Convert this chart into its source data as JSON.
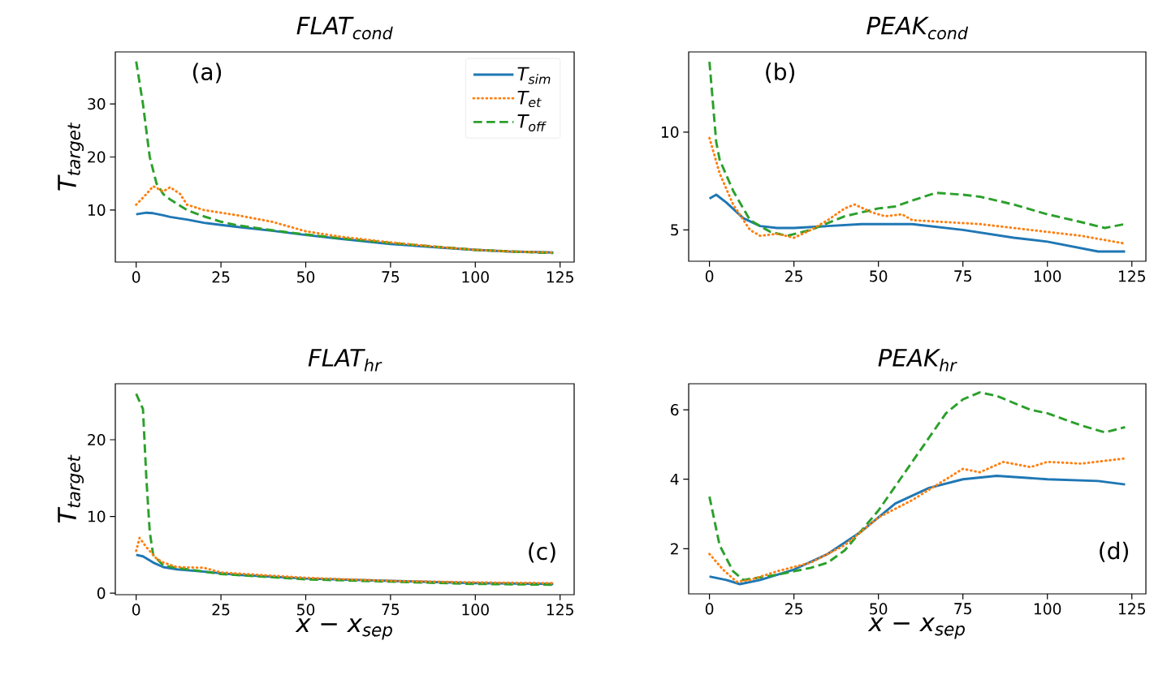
{
  "chart_data": [
    {
      "type": "line",
      "title": "FLAT$_{cond}$",
      "ylabel": "T$_{target}$",
      "annotations": [
        "(a)"
      ],
      "legend": "top right",
      "xlim": [
        -6.15,
        129.15
      ],
      "ylim": [
        0.2,
        39.8
      ],
      "xticks": [
        0,
        25,
        50,
        75,
        100,
        125
      ],
      "yticks": [
        10,
        20,
        30
      ],
      "series": [
        {
          "name": "T$_{sim}$",
          "color": "#1f77b4",
          "line_style": "solid",
          "x": [
            0,
            3,
            5,
            8,
            10,
            13,
            15,
            20,
            25,
            30,
            40,
            50,
            60,
            75,
            90,
            100,
            110,
            123
          ],
          "values": [
            9.2,
            9.5,
            9.4,
            9.0,
            8.7,
            8.4,
            8.2,
            7.6,
            7.2,
            6.8,
            6.1,
            5.3,
            4.6,
            3.6,
            2.9,
            2.5,
            2.2,
            2.0
          ]
        },
        {
          "name": "T$_{et}$",
          "color": "#ff7f0e",
          "line_style": "dotted",
          "x": [
            0,
            3,
            5,
            8,
            10,
            13,
            15,
            20,
            25,
            30,
            40,
            50,
            60,
            75,
            90,
            100,
            110,
            123
          ],
          "values": [
            11,
            13,
            14.5,
            13.5,
            14.3,
            13,
            11,
            10,
            9.5,
            9,
            7.8,
            6,
            5,
            3.9,
            3.0,
            2.5,
            2.2,
            2.0
          ]
        },
        {
          "name": "T$_{off}$",
          "color": "#2ca02c",
          "line_style": "dashed",
          "x": [
            0,
            2,
            4,
            6,
            8,
            10,
            13,
            15,
            20,
            25,
            30,
            40,
            50,
            60,
            75,
            90,
            100,
            110,
            123
          ],
          "values": [
            38,
            30,
            20,
            15,
            13,
            12,
            10.8,
            10,
            8.8,
            7.8,
            7.1,
            6.2,
            5.4,
            4.7,
            3.8,
            3.0,
            2.5,
            2.2,
            1.9
          ]
        }
      ]
    },
    {
      "type": "line",
      "title": "PEAK$_{cond}$",
      "annotations": [
        "(b)"
      ],
      "xlim": [
        -6.15,
        129.15
      ],
      "ylim": [
        3.4,
        14.1
      ],
      "xticks": [
        0,
        25,
        50,
        75,
        100,
        125
      ],
      "yticks": [
        5,
        10
      ],
      "series": [
        {
          "color": "#1f77b4",
          "line_style": "solid",
          "x": [
            0,
            2,
            5,
            10,
            15,
            20,
            25,
            35,
            45,
            60,
            75,
            90,
            100,
            115,
            123
          ],
          "values": [
            6.6,
            6.8,
            6.4,
            5.6,
            5.2,
            5.1,
            5.1,
            5.2,
            5.3,
            5.3,
            5.0,
            4.6,
            4.4,
            3.9,
            3.9
          ]
        },
        {
          "color": "#ff7f0e",
          "line_style": "dotted",
          "x": [
            0,
            3,
            7,
            12,
            15,
            20,
            25,
            30,
            35,
            40,
            43,
            48,
            52,
            57,
            60,
            70,
            80,
            90,
            100,
            110,
            123
          ],
          "values": [
            9.7,
            7.9,
            6.3,
            5.0,
            4.7,
            4.8,
            4.6,
            5.0,
            5.5,
            6.1,
            6.3,
            5.9,
            5.7,
            5.8,
            5.5,
            5.4,
            5.3,
            5.1,
            4.9,
            4.7,
            4.3
          ]
        },
        {
          "color": "#2ca02c",
          "line_style": "dashed",
          "x": [
            0,
            2,
            3,
            7,
            12,
            18,
            23,
            30,
            40,
            50,
            55,
            60,
            67,
            75,
            80,
            90,
            100,
            110,
            117,
            123
          ],
          "values": [
            13.6,
            9.5,
            8.6,
            7.0,
            5.5,
            4.9,
            4.7,
            5.0,
            5.7,
            6.1,
            6.2,
            6.5,
            6.9,
            6.8,
            6.7,
            6.3,
            5.8,
            5.4,
            5.1,
            5.3
          ]
        }
      ]
    },
    {
      "type": "line",
      "title": "FLAT$_{hr}$",
      "ylabel": "T$_{target}$",
      "xlabel": "x − x$_{sep}$",
      "annotations": [
        "(c)"
      ],
      "xlim": [
        -6.15,
        129.15
      ],
      "ylim": [
        -0.2,
        27.3
      ],
      "xticks": [
        0,
        25,
        50,
        75,
        100,
        125
      ],
      "yticks": [
        0,
        10,
        20
      ],
      "series": [
        {
          "color": "#1f77b4",
          "line_style": "solid",
          "x": [
            0,
            2,
            5,
            8,
            12,
            20,
            30,
            50,
            75,
            100,
            123
          ],
          "values": [
            5.0,
            4.8,
            4.0,
            3.4,
            3.1,
            2.8,
            2.4,
            1.9,
            1.6,
            1.3,
            1.2
          ]
        },
        {
          "color": "#ff7f0e",
          "line_style": "dotted",
          "x": [
            0,
            1,
            3,
            6,
            8,
            12,
            20,
            25,
            50,
            75,
            100,
            123
          ],
          "values": [
            5.5,
            7.2,
            6.0,
            4.5,
            4.0,
            3.4,
            3.3,
            2.7,
            2.0,
            1.6,
            1.4,
            1.3
          ]
        },
        {
          "color": "#2ca02c",
          "line_style": "dashed",
          "x": [
            0,
            2,
            3,
            4,
            5,
            8,
            12,
            25,
            50,
            75,
            100,
            123
          ],
          "values": [
            26,
            24,
            15,
            8,
            5,
            3.6,
            3.3,
            2.5,
            1.8,
            1.5,
            1.2,
            1.1
          ]
        }
      ]
    },
    {
      "type": "line",
      "title": "PEAK$_{hr}$",
      "xlabel": "x − x$_{sep}$",
      "annotations": [
        "(d)"
      ],
      "xlim": [
        -6.15,
        129.15
      ],
      "ylim": [
        0.7,
        6.75
      ],
      "xticks": [
        0,
        25,
        50,
        75,
        100,
        125
      ],
      "yticks": [
        2,
        4,
        6
      ],
      "series": [
        {
          "color": "#1f77b4",
          "line_style": "solid",
          "x": [
            0,
            5,
            9,
            15,
            25,
            35,
            45,
            55,
            65,
            75,
            85,
            100,
            115,
            123
          ],
          "values": [
            1.2,
            1.1,
            0.98,
            1.1,
            1.4,
            1.85,
            2.5,
            3.3,
            3.75,
            4.0,
            4.1,
            4.0,
            3.95,
            3.85
          ]
        },
        {
          "color": "#ff7f0e",
          "line_style": "dotted",
          "x": [
            0,
            4,
            8,
            12,
            20,
            30,
            40,
            50,
            60,
            70,
            75,
            80,
            87,
            95,
            100,
            110,
            123
          ],
          "values": [
            1.85,
            1.4,
            1.05,
            1.1,
            1.35,
            1.6,
            2.1,
            2.9,
            3.4,
            4.0,
            4.3,
            4.2,
            4.5,
            4.35,
            4.5,
            4.45,
            4.6
          ]
        },
        {
          "color": "#2ca02c",
          "line_style": "dashed",
          "x": [
            0,
            3,
            7,
            10,
            20,
            30,
            35,
            40,
            50,
            60,
            70,
            75,
            80,
            85,
            95,
            100,
            110,
            117,
            123
          ],
          "values": [
            3.5,
            2.1,
            1.35,
            1.1,
            1.25,
            1.45,
            1.6,
            1.95,
            3.1,
            4.5,
            5.9,
            6.3,
            6.5,
            6.4,
            6.0,
            5.9,
            5.55,
            5.35,
            5.5
          ]
        }
      ]
    }
  ]
}
